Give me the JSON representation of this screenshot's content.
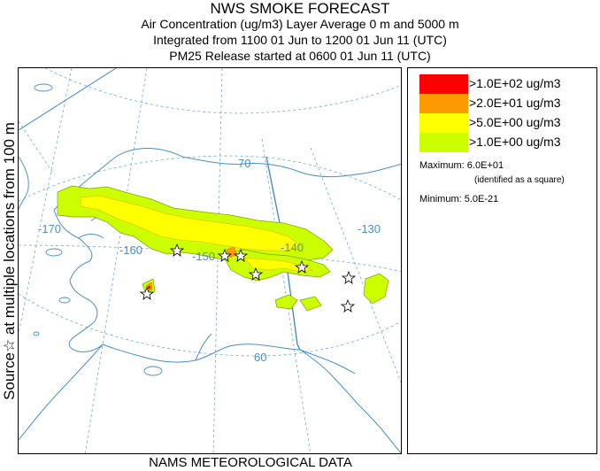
{
  "header": {
    "title": "NWS SMOKE FORECAST",
    "line2": "Air Concentration (ug/m3) Layer Average    0 m and  5000 m",
    "line3": "Integrated from 1100 01 Jun to 1200 01 Jun 11 (UTC)",
    "line4": "PM25 Release started at 0600 01 Jun 11 (UTC)"
  },
  "side_label": "Source☆ at multiple locations   from   100 m",
  "footer": "NAMS METEOROLOGICAL DATA",
  "legend": {
    "items": [
      {
        "label": ">1.0E+02 ug/m3",
        "color": "#ff0000"
      },
      {
        "label": ">2.0E+01 ug/m3",
        "color": "#ff9900"
      },
      {
        "label": ">5.0E+00 ug/m3",
        "color": "#ffff00"
      },
      {
        "label": ">1.0E+00 ug/m3",
        "color": "#ccff00"
      }
    ],
    "maximum": "Maximum: 6.0E+01",
    "maximum_note": "(identified as a square)",
    "minimum": "Minimum: 5.0E-21"
  },
  "map": {
    "coordinate_labels": {
      "lat_70": "70",
      "lat_60": "60",
      "lon_m170": "-170",
      "lon_m160": "-160",
      "lon_m150": "-150",
      "lon_m140": "-140",
      "lon_m130": "-130"
    },
    "colors": {
      "coast": "#4a8fc4",
      "grid": "#6aa8d8",
      "border": "#3a86c4",
      "smoke_low": "#ccff00",
      "smoke_mid": "#ffff00",
      "smoke_high": "#ff9900",
      "smoke_max": "#ff0000"
    }
  }
}
